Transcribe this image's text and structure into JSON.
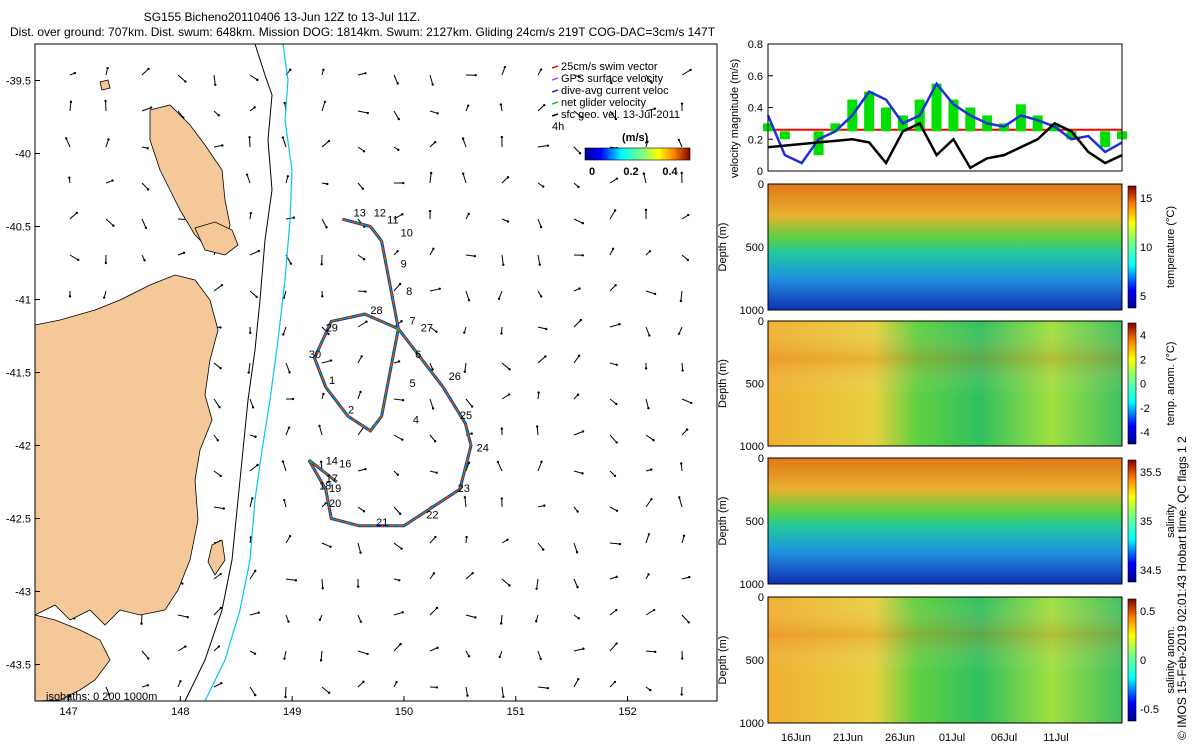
{
  "title_line1": "SG155 Bicheno20110406 13-Jun 12Z to 13-Jul 11Z.",
  "title_line2": "Dist. over ground: 707km. Dist. swum: 648km. Mission DOG: 1814km. Swum: 2127km. Gliding 24cm/s 219T COG-DAC=3cm/s 147T",
  "credit": "© IMOS 15-Feb-2019 02:01:43 Hobart time. QC flags 1  2",
  "colors": {
    "land": "#f5c89a",
    "track_red": "#ff0000",
    "track_blue": "#1f2fd6",
    "net_green": "#00e000",
    "isobath_cyan": "#00c8e6"
  },
  "chart_data": [
    {
      "type": "map",
      "x_ticks": [
        "147",
        "148",
        "149",
        "150",
        "151",
        "152"
      ],
      "y_ticks": [
        "-39.5",
        "-40",
        "-40.5",
        "-41",
        "-41.5",
        "-42",
        "-42.5",
        "-43",
        "-43.5"
      ],
      "xlim": [
        146.7,
        152.8
      ],
      "ylim": [
        -43.75,
        -39.25
      ],
      "legend": [
        "25cm/s swim vector",
        "GPS surface velocity",
        "dive-avg current veloc",
        "net glider velocity",
        "sfc geo. vel. 13-Jul-2011"
      ],
      "colorbar_title": "(m/s)",
      "colorbar_ticks": [
        "0",
        "0.2",
        "0.4"
      ],
      "label_4h": "4h",
      "isobaths_label": "isobaths: 0    200  1000m",
      "track": [
        [
          149.45,
          -40.45
        ],
        [
          149.7,
          -40.5
        ],
        [
          149.8,
          -40.6
        ],
        [
          149.85,
          -40.8
        ],
        [
          149.9,
          -41.0
        ],
        [
          149.95,
          -41.2
        ],
        [
          149.9,
          -41.4
        ],
        [
          149.85,
          -41.6
        ],
        [
          149.8,
          -41.8
        ],
        [
          149.7,
          -41.9
        ],
        [
          149.5,
          -41.8
        ],
        [
          149.3,
          -41.6
        ],
        [
          149.2,
          -41.4
        ],
        [
          149.35,
          -41.15
        ],
        [
          149.65,
          -41.1
        ],
        [
          149.95,
          -41.2
        ],
        [
          150.15,
          -41.4
        ],
        [
          150.35,
          -41.6
        ],
        [
          150.55,
          -41.85
        ],
        [
          150.6,
          -42.0
        ],
        [
          150.5,
          -42.3
        ],
        [
          150.3,
          -42.4
        ],
        [
          150.0,
          -42.55
        ],
        [
          149.6,
          -42.55
        ],
        [
          149.35,
          -42.5
        ],
        [
          149.3,
          -42.3
        ],
        [
          149.15,
          -42.1
        ],
        [
          149.4,
          -42.25
        ]
      ],
      "track_labels": [
        {
          "text": "13",
          "lon": 149.55,
          "lat": -40.43
        },
        {
          "text": "12",
          "lon": 149.73,
          "lat": -40.43
        },
        {
          "text": "11",
          "lon": 149.85,
          "lat": -40.48
        },
        {
          "text": "10",
          "lon": 149.97,
          "lat": -40.57
        },
        {
          "text": "9",
          "lon": 149.97,
          "lat": -40.78
        },
        {
          "text": "8",
          "lon": 150.02,
          "lat": -40.97
        },
        {
          "text": "7",
          "lon": 150.05,
          "lat": -41.17
        },
        {
          "text": "27",
          "lon": 150.15,
          "lat": -41.22
        },
        {
          "text": "28",
          "lon": 149.7,
          "lat": -41.1
        },
        {
          "text": "29",
          "lon": 149.3,
          "lat": -41.22
        },
        {
          "text": "30",
          "lon": 149.15,
          "lat": -41.4
        },
        {
          "text": "6",
          "lon": 150.1,
          "lat": -41.4
        },
        {
          "text": "1",
          "lon": 149.33,
          "lat": -41.58
        },
        {
          "text": "5",
          "lon": 150.05,
          "lat": -41.6
        },
        {
          "text": "26",
          "lon": 150.4,
          "lat": -41.55
        },
        {
          "text": "2",
          "lon": 149.5,
          "lat": -41.78
        },
        {
          "text": "4",
          "lon": 150.08,
          "lat": -41.85
        },
        {
          "text": "25",
          "lon": 150.5,
          "lat": -41.82
        },
        {
          "text": "24",
          "lon": 150.65,
          "lat": -42.04
        },
        {
          "text": "14",
          "lon": 149.3,
          "lat": -42.13
        },
        {
          "text": "16",
          "lon": 149.42,
          "lat": -42.15
        },
        {
          "text": "17",
          "lon": 149.3,
          "lat": -42.25
        },
        {
          "text": "18",
          "lon": 149.24,
          "lat": -42.3
        },
        {
          "text": "19",
          "lon": 149.33,
          "lat": -42.32
        },
        {
          "text": "23",
          "lon": 150.48,
          "lat": -42.32
        },
        {
          "text": "20",
          "lon": 149.33,
          "lat": -42.42
        },
        {
          "text": "22",
          "lon": 150.2,
          "lat": -42.5
        },
        {
          "text": "21",
          "lon": 149.75,
          "lat": -42.55
        }
      ]
    },
    {
      "type": "line",
      "ylabel": "velocity magnitude (m/s)",
      "ylim": [
        0,
        0.8
      ],
      "y_ticks": [
        "0",
        "0.2",
        "0.4",
        "0.6",
        "0.8"
      ],
      "series": [
        {
          "color": "#ff0000",
          "values": [
            0.26,
            0.26,
            0.26,
            0.26,
            0.26,
            0.26,
            0.26,
            0.26,
            0.26,
            0.26,
            0.26,
            0.26,
            0.26,
            0.26,
            0.26,
            0.26
          ]
        },
        {
          "color": "#00e000",
          "values": [
            0.3,
            0.2,
            0.25,
            0.1,
            0.3,
            0.45,
            0.5,
            0.4,
            0.35,
            0.45,
            0.55,
            0.45,
            0.4,
            0.35,
            0.3,
            0.42,
            0.35,
            0.3,
            0.2,
            0.25,
            0.15,
            0.2
          ]
        },
        {
          "color": "#1f2fd6",
          "values": [
            0.35,
            0.1,
            0.05,
            0.2,
            0.25,
            0.35,
            0.5,
            0.45,
            0.3,
            0.35,
            0.55,
            0.42,
            0.35,
            0.3,
            0.28,
            0.35,
            0.32,
            0.28,
            0.2,
            0.22,
            0.12,
            0.18
          ]
        },
        {
          "color": "#000000",
          "values": [
            0.15,
            0.16,
            0.17,
            0.18,
            0.19,
            0.2,
            0.18,
            0.05,
            0.25,
            0.3,
            0.1,
            0.2,
            0.02,
            0.08,
            0.1,
            0.15,
            0.2,
            0.3,
            0.25,
            0.12,
            0.05,
            0.1
          ]
        }
      ]
    },
    {
      "type": "heatmap",
      "ylabel": "Depth (m)",
      "y_ticks": [
        "0",
        "500",
        "1000"
      ],
      "colorbar_label": "temperature (°C)",
      "colorbar_ticks": [
        "15",
        "10",
        "5"
      ]
    },
    {
      "type": "heatmap",
      "ylabel": "Depth (m)",
      "y_ticks": [
        "0",
        "500",
        "1000"
      ],
      "colorbar_label": "temp. anom. (°C)",
      "colorbar_ticks": [
        "4",
        "2",
        "0",
        "-2",
        "-4"
      ]
    },
    {
      "type": "heatmap",
      "ylabel": "Depth (m)",
      "y_ticks": [
        "0",
        "500",
        "1000"
      ],
      "colorbar_label": "salinity",
      "colorbar_ticks": [
        "35.5",
        "35",
        "34.5"
      ]
    },
    {
      "type": "heatmap",
      "ylabel": "Depth (m)",
      "y_ticks": [
        "0",
        "500",
        "1000"
      ],
      "colorbar_label": "salinity anom.",
      "colorbar_ticks": [
        "0.5",
        "0",
        "-0.5"
      ],
      "x_ticks": [
        "16Jun",
        "21Jun",
        "26Jun",
        "01Jul",
        "06Jul",
        "11Jul"
      ]
    }
  ]
}
